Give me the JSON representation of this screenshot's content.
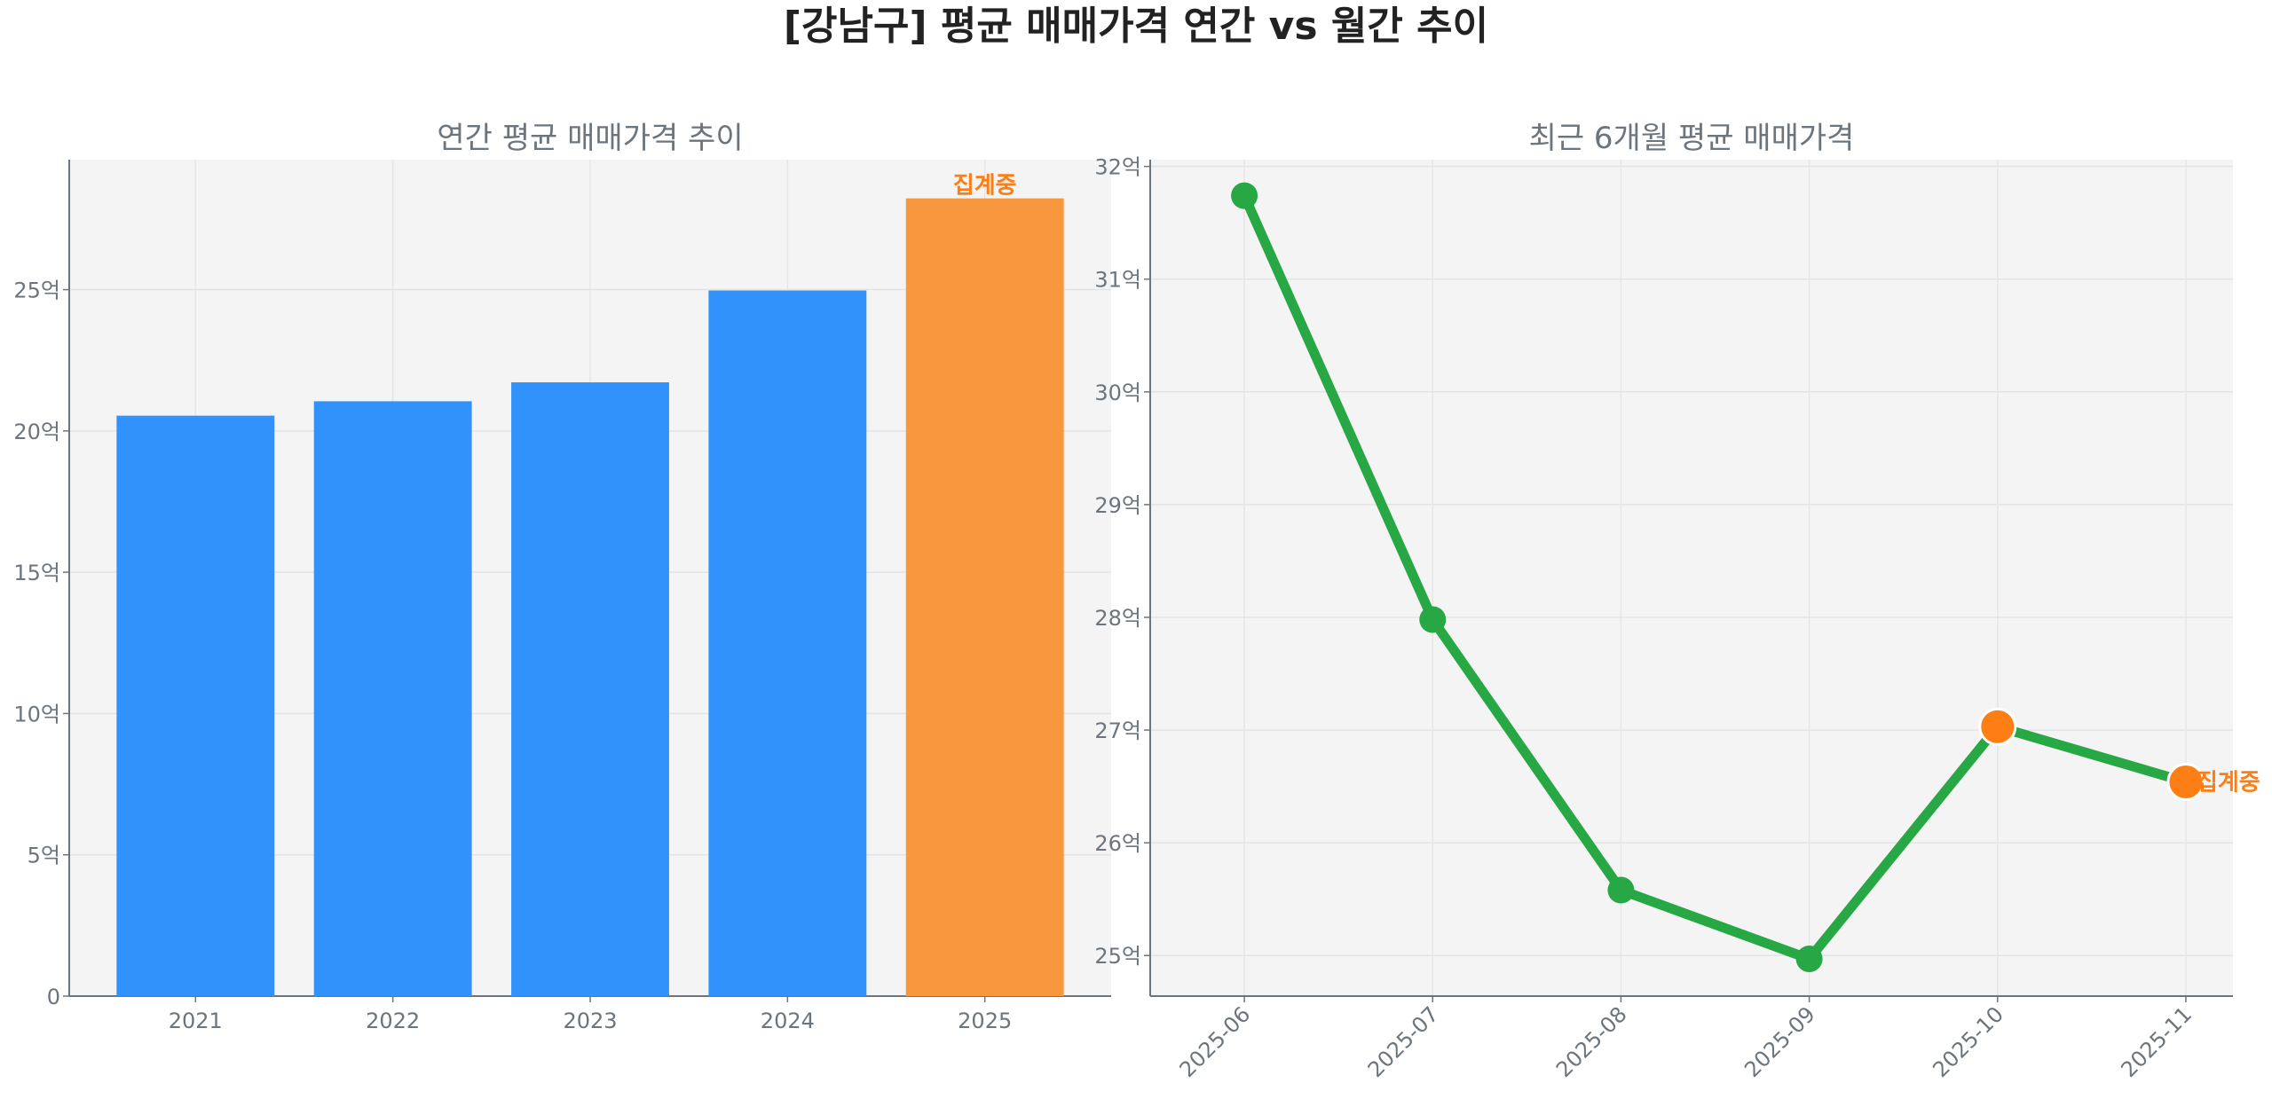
{
  "title": "[강남구] 평균 매매가격 연간 vs 월간 추이",
  "colors": {
    "bar": "#3192fb",
    "bar_highlight": "#f9973f",
    "line": "#28a745",
    "marker_highlight": "#fd7e14",
    "annotation": "#fd7e14",
    "text": "#6c757d",
    "plot_bg": "#f4f4f4"
  },
  "chart_data": [
    {
      "type": "bar",
      "title": "연간 평균 매매가격 추이",
      "categories": [
        "2021",
        "2022",
        "2023",
        "2024",
        "2025"
      ],
      "values": [
        20.54,
        21.05,
        21.72,
        24.97,
        28.23
      ],
      "unit": "억",
      "highlight_index": 4,
      "annotation": {
        "index": 4,
        "text": "집계중"
      },
      "ylim": [
        0,
        29.6
      ],
      "yticks": [
        0,
        5,
        10,
        15,
        20,
        25
      ],
      "ytick_labels": [
        "0",
        "5억",
        "10억",
        "15억",
        "20억",
        "25억"
      ],
      "grid": true
    },
    {
      "type": "line",
      "title": "최근 6개월 평균 매매가격",
      "categories": [
        "2025-06",
        "2025-07",
        "2025-08",
        "2025-09",
        "2025-10",
        "2025-11"
      ],
      "values": [
        31.74,
        27.98,
        25.58,
        24.97,
        27.03,
        26.54
      ],
      "unit": "억",
      "highlight_indices": [
        4,
        5
      ],
      "annotation": {
        "index": 5,
        "text": "집계중"
      },
      "ylim": [
        24.64,
        32.06
      ],
      "yticks": [
        25,
        26,
        27,
        28,
        29,
        30,
        31,
        32
      ],
      "ytick_labels": [
        "25억",
        "26억",
        "27억",
        "28억",
        "29억",
        "30억",
        "31억",
        "32억"
      ],
      "grid": true
    }
  ]
}
